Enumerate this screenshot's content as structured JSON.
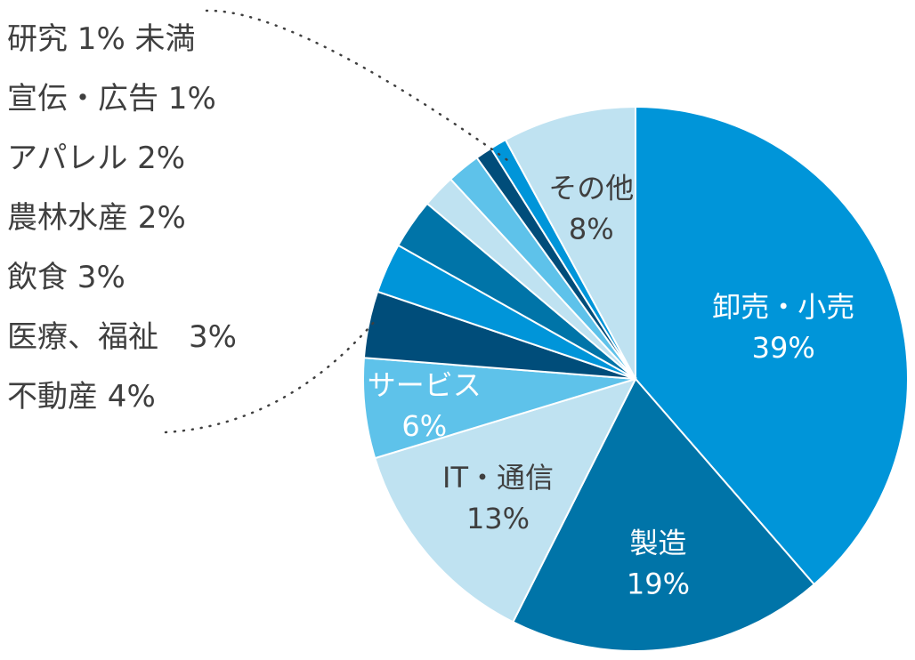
{
  "chart_data": {
    "type": "pie",
    "start_angle_deg": 0,
    "direction": "clockwise",
    "slices": [
      {
        "name": "卸売・小売",
        "value": 39,
        "pct_text": "39%",
        "color": "#0095d9",
        "text_color": "#ffffff"
      },
      {
        "name": "製造",
        "value": 19,
        "pct_text": "19%",
        "color": "#0074a8",
        "text_color": "#ffffff"
      },
      {
        "name": "IT・通信",
        "value": 13,
        "pct_text": "13%",
        "color": "#bfe2f1",
        "text_color": "#3f3f3f"
      },
      {
        "name": "サービス",
        "value": 6,
        "pct_text": "6%",
        "color": "#5ec2ea",
        "text_color": "#ffffff"
      },
      {
        "name": "不動産",
        "value": 4,
        "pct_text": "不動産 4%",
        "color": "#004d7a",
        "text_color": "#3f3f3f"
      },
      {
        "name": "医療、福祉",
        "value": 3,
        "pct_text": "医療、福祉　3%",
        "color": "#0095d9",
        "text_color": "#3f3f3f"
      },
      {
        "name": "飲食",
        "value": 3,
        "pct_text": "飲食 3%",
        "color": "#0074a8",
        "text_color": "#3f3f3f"
      },
      {
        "name": "農林水産",
        "value": 2,
        "pct_text": "農林水産 2%",
        "color": "#bfe2f1",
        "text_color": "#3f3f3f"
      },
      {
        "name": "アパレル",
        "value": 2,
        "pct_text": "アパレル 2%",
        "color": "#5ec2ea",
        "text_color": "#3f3f3f"
      },
      {
        "name": "宣伝・広告",
        "value": 1,
        "pct_text": "宣伝・広告 1%",
        "color": "#004d7a",
        "text_color": "#3f3f3f"
      },
      {
        "name": "研究",
        "value": 1,
        "pct_text": "研究 1% 未満",
        "color": "#0095d9",
        "text_color": "#3f3f3f"
      },
      {
        "name": "その他",
        "value": 8,
        "pct_text": "8%",
        "color": "#bfe2f1",
        "text_color": "#3f3f3f"
      }
    ],
    "inside_labels": [
      "卸売・小売",
      "製造",
      "IT・通信",
      "サービス",
      "その他"
    ],
    "side_labels": [
      "研究",
      "宣伝・広告",
      "アパレル",
      "農林水産",
      "飲食",
      "医療、福祉",
      "不動産"
    ],
    "leader_line_color": "#3f3f3f"
  }
}
